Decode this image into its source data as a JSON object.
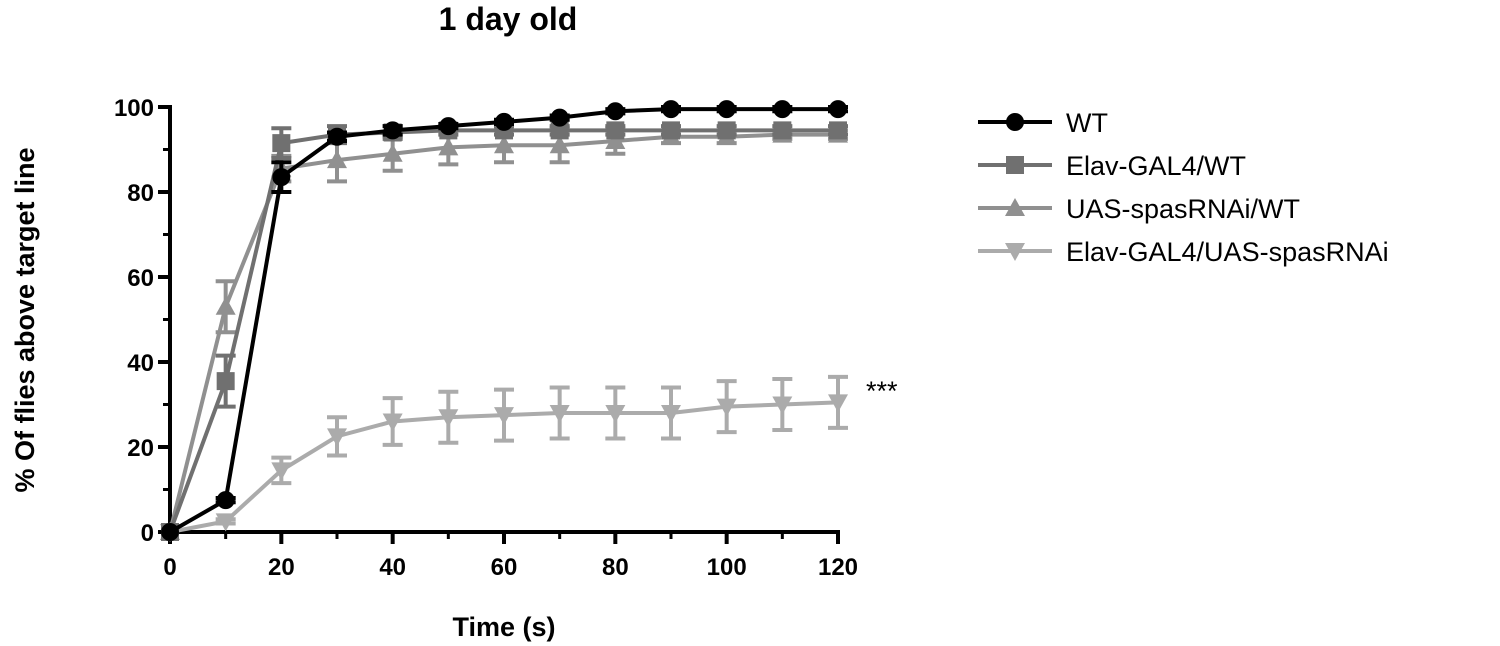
{
  "chart_data": {
    "type": "line",
    "title": "1 day old",
    "xlabel": "Time (s)",
    "ylabel": "% Of flies above target line",
    "xlim": [
      0,
      120
    ],
    "ylim": [
      0,
      100
    ],
    "xticks": [
      0,
      20,
      40,
      60,
      80,
      100,
      120
    ],
    "yticks": [
      0,
      20,
      40,
      60,
      80,
      100
    ],
    "grid": false,
    "legend_position": "right",
    "annotation": "***",
    "x": [
      0,
      10,
      20,
      30,
      40,
      50,
      60,
      70,
      80,
      90,
      100,
      110,
      120
    ],
    "series": [
      {
        "name": "WT",
        "marker": "circle",
        "color": "#000000",
        "values": [
          0,
          7.5,
          83.5,
          93,
          94.5,
          95.5,
          96.5,
          97.5,
          99,
          99.5,
          99.5,
          99.5,
          99.5
        ],
        "errors": [
          0,
          0.5,
          3.5,
          1,
          1,
          0.5,
          0.5,
          0.5,
          0.5,
          0.5,
          0.5,
          0.5,
          0.5
        ]
      },
      {
        "name": "Elav-GAL4/WT",
        "marker": "square",
        "color": "#707070",
        "values": [
          0,
          35.5,
          91.5,
          93.5,
          94,
          94.5,
          94.5,
          94.5,
          94.5,
          94.5,
          94.5,
          94.5,
          94.5
        ],
        "errors": [
          0,
          6,
          3.5,
          2,
          1.5,
          1,
          1,
          1,
          1,
          1,
          1,
          1,
          1
        ]
      },
      {
        "name": "UAS-spasRNAi/WT",
        "marker": "triangle-up",
        "color": "#909090",
        "values": [
          0,
          53,
          85.5,
          87.5,
          89,
          90.5,
          91,
          91,
          92,
          93,
          93,
          93.5,
          93.5
        ],
        "errors": [
          0,
          6,
          3,
          5,
          4,
          4,
          4,
          4,
          3,
          1.5,
          1.5,
          1,
          1
        ]
      },
      {
        "name": "Elav-GAL4/UAS-spasRNAi",
        "marker": "triangle-down",
        "color": "#ababab",
        "values": [
          0,
          2.5,
          14.5,
          22.5,
          26,
          27,
          27.5,
          28,
          28,
          28,
          29.5,
          30,
          30.5
        ],
        "errors": [
          0,
          0.5,
          3,
          4.5,
          5.5,
          6,
          6,
          6,
          6,
          6,
          6,
          6,
          6
        ]
      }
    ]
  }
}
